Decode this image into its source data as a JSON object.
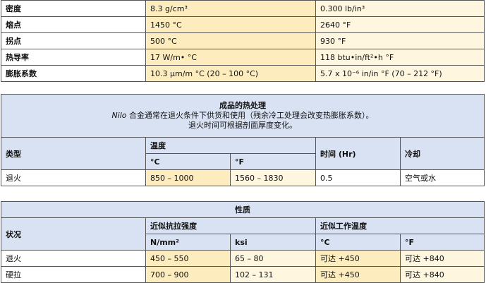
{
  "properties": [
    {
      "label": "密度",
      "metric": "8.3 g/cm³",
      "imperial": "0.300 lb/in³"
    },
    {
      "label": "熔点",
      "metric": "1450 °C",
      "imperial": "2640 °F"
    },
    {
      "label": "拐点",
      "metric": "500 °C",
      "imperial": "930 °F"
    },
    {
      "label": "热导率",
      "metric": "17 W/m• °C",
      "imperial": "118 btu•in/ft²•h °F"
    },
    {
      "label": "膨胀系数",
      "metric": "10.3 µm/m °C (20 – 100 °C)",
      "imperial": "5.7 x 10⁻⁶ in/in °F (70 – 212 °F)"
    }
  ],
  "heat_treatment": {
    "title": "成品的热处理",
    "note_italic": "Nilo",
    "note_line1": " 合金通常在退火条件下供货和使用（残余冷工处理会改变热膨胀系数）。",
    "note_line2": "退火时间可根据剖面厚度变化。",
    "headers": {
      "type": "类型",
      "temperature": "温度",
      "c": "°C",
      "f": "°F",
      "time": "时间 (Hr)",
      "cooling": "冷却"
    },
    "rows": [
      {
        "type": "退火",
        "c": "850 – 1000",
        "f": "1560 – 1830",
        "time": "0.5",
        "cooling": "空气或水"
      }
    ]
  },
  "mechanical": {
    "title": "性质",
    "headers": {
      "condition": "状况",
      "tensile": "近似抗拉强度",
      "nmm": "N/mm²",
      "ksi": "ksi",
      "work_temp": "近似工作温度",
      "c": "°C",
      "f": "°F"
    },
    "rows": [
      {
        "condition": "退火",
        "nmm": "450 – 550",
        "ksi": "65 – 80",
        "c": "可达 +450",
        "f": "可达 +840"
      },
      {
        "condition": "硬拉",
        "nmm": "700 – 900",
        "ksi": "102 – 131",
        "c": "可达 +450",
        "f": "可达 +840"
      }
    ]
  }
}
